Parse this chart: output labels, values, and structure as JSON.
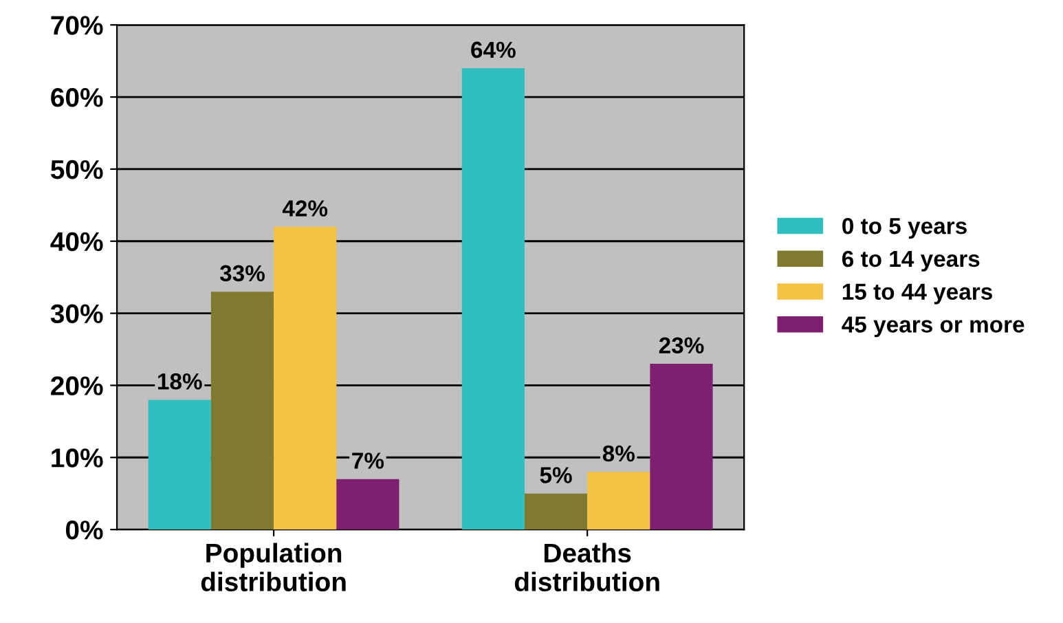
{
  "chart_data": {
    "type": "bar",
    "categories": [
      "Population\ndistribution",
      "Deaths\ndistribution"
    ],
    "series": [
      {
        "name": "0 to 5 years",
        "color": "#2fbfbf",
        "values": [
          18,
          64
        ],
        "value_labels": [
          "18%",
          "64%"
        ]
      },
      {
        "name": "6 to 14 years",
        "color": "#7f7a2f",
        "values": [
          33,
          5
        ],
        "value_labels": [
          "33%",
          "5%"
        ]
      },
      {
        "name": "15 to 44 years",
        "color": "#f5c243",
        "values": [
          42,
          8
        ],
        "value_labels": [
          "42%",
          "8%"
        ]
      },
      {
        "name": "45 years or more",
        "color": "#7f1f6f",
        "values": [
          7,
          23
        ],
        "value_labels": [
          "7%",
          "23%"
        ]
      }
    ],
    "ylim": [
      0,
      70
    ],
    "yticks": [
      {
        "value": 0,
        "label": "0%"
      },
      {
        "value": 10,
        "label": "10%"
      },
      {
        "value": 20,
        "label": "20%"
      },
      {
        "value": 30,
        "label": "30%"
      },
      {
        "value": 40,
        "label": "40%"
      },
      {
        "value": 50,
        "label": "50%"
      },
      {
        "value": 60,
        "label": "60%"
      },
      {
        "value": 70,
        "label": "70%"
      }
    ],
    "grid": "y",
    "legend": "right"
  }
}
